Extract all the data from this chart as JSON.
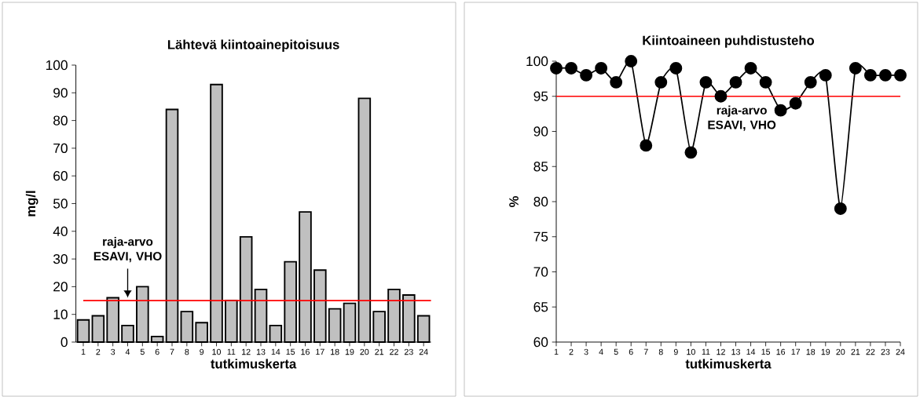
{
  "chart_data": [
    {
      "type": "bar",
      "title": "Lähtevä kiintoainepitoisuus",
      "xlabel": "tutkimuskerta",
      "ylabel": "mg/l",
      "categories": [
        "1",
        "2",
        "3",
        "4",
        "5",
        "6",
        "7",
        "8",
        "9",
        "10",
        "11",
        "12",
        "13",
        "14",
        "15",
        "16",
        "17",
        "18",
        "19",
        "20",
        "21",
        "22",
        "23",
        "24"
      ],
      "values": [
        8,
        9.5,
        16,
        6,
        20,
        2,
        84,
        11,
        7,
        93,
        15,
        38,
        19,
        6,
        29,
        47,
        26,
        12,
        14,
        88,
        11,
        19,
        17,
        9.5
      ],
      "color": "#c0c0c0",
      "ylim": [
        0,
        100
      ],
      "yticks": [
        0,
        10,
        20,
        30,
        40,
        50,
        60,
        70,
        80,
        90,
        100
      ],
      "ref_lines": [
        {
          "axis": "y",
          "value": 15,
          "color": "#ff0000"
        }
      ],
      "annotations": [
        "raja-arvo ESAVI, VHO"
      ]
    },
    {
      "type": "line",
      "title": "Kiintoaineen puhdistusteho",
      "xlabel": "tutkimuskerta",
      "ylabel": "%",
      "categories": [
        "1",
        "2",
        "3",
        "4",
        "5",
        "6",
        "7",
        "8",
        "9",
        "10",
        "11",
        "12",
        "13",
        "14",
        "15",
        "16",
        "17",
        "18",
        "19",
        "20",
        "21",
        "22",
        "23",
        "24"
      ],
      "values": [
        99,
        99,
        98,
        99,
        97,
        100,
        88,
        97,
        99,
        87,
        97,
        95,
        97,
        99,
        97,
        93,
        94,
        97,
        98,
        79,
        99,
        98,
        98,
        98
      ],
      "color": "#000000",
      "marker": "circle",
      "line_style": "solid",
      "ylim": [
        60,
        100
      ],
      "yticks": [
        60,
        65,
        70,
        75,
        80,
        85,
        90,
        95,
        100
      ],
      "ref_lines": [
        {
          "axis": "y",
          "value": 95,
          "label": "raja-arvo ESAVI, VHO",
          "color": "#ff0000"
        }
      ]
    }
  ]
}
